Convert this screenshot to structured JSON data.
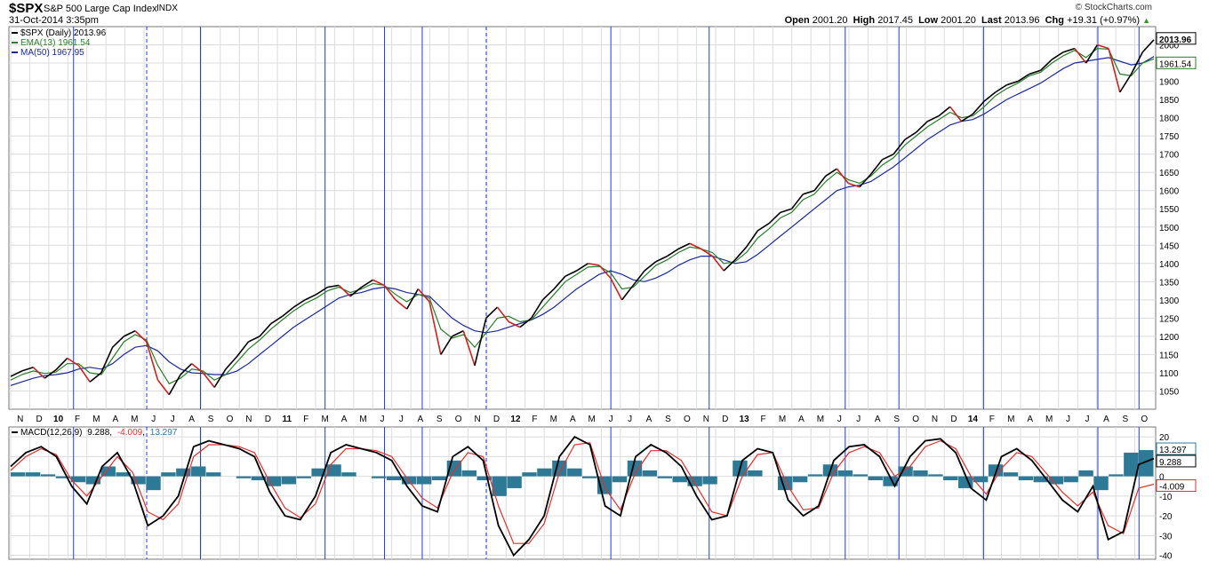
{
  "header": {
    "symbol": "$SPX",
    "name": "S&P 500 Large Cap Index",
    "exchange": "INDX",
    "date": "31-Oct-2014 3:35pm",
    "brand": "© StockCharts.com",
    "open_label": "Open",
    "open": "2001.20",
    "high_label": "High",
    "high": "2017.45",
    "low_label": "Low",
    "low": "2001.20",
    "last_label": "Last",
    "last": "2013.96",
    "chg_label": "Chg",
    "chg": "+19.31 (+0.97%)"
  },
  "legend": {
    "price": "$SPX (Daily) 2013.96",
    "ema": "EMA(13) 1961.54",
    "ma": "MA(50) 1967.95"
  },
  "macd_label": {
    "name": "MACD(12,26,9)",
    "macd": "9.288",
    "signal": "-4.009",
    "hist": "13.297"
  },
  "colors": {
    "price": "#000000",
    "down": "#cc2222",
    "ema": "#2a7d2a",
    "ma": "#1a2a9a",
    "vline": "#1f3fd6",
    "grid": "#dcdcdc",
    "hist": "#2e7a96",
    "signal": "#e03030"
  },
  "chart_data": [
    {
      "type": "line",
      "title": "$SPX (Daily)",
      "ylim": [
        1000,
        2050
      ],
      "yticks": [
        "1050",
        "1100",
        "1150",
        "1200",
        "1250",
        "1300",
        "1350",
        "1400",
        "1450",
        "1500",
        "1550",
        "1600",
        "1650",
        "1700",
        "1750",
        "1800",
        "1850",
        "1900",
        "1950",
        "2000"
      ],
      "x_month_labels": [
        "N",
        "D",
        "10",
        "F",
        "M",
        "A",
        "M",
        "J",
        "J",
        "A",
        "S",
        "O",
        "N",
        "D",
        "11",
        "F",
        "M",
        "A",
        "M",
        "J",
        "J",
        "A",
        "S",
        "O",
        "N",
        "D",
        "12",
        "F",
        "M",
        "A",
        "M",
        "J",
        "J",
        "A",
        "S",
        "O",
        "N",
        "D",
        "13",
        "F",
        "M",
        "A",
        "M",
        "J",
        "J",
        "A",
        "S",
        "O",
        "N",
        "D",
        "14",
        "F",
        "M",
        "A",
        "M",
        "J",
        "J",
        "A",
        "S",
        "O"
      ],
      "x_start": "2009-11",
      "grid": true,
      "last_value_labels": [
        "2013.96",
        "1961.54"
      ],
      "series": [
        {
          "name": "$SPX (Daily)",
          "values": [
            1090,
            1105,
            1115,
            1085,
            1108,
            1140,
            1120,
            1075,
            1100,
            1170,
            1200,
            1215,
            1185,
            1080,
            1040,
            1095,
            1125,
            1100,
            1060,
            1110,
            1145,
            1185,
            1200,
            1235,
            1255,
            1280,
            1300,
            1315,
            1335,
            1340,
            1310,
            1335,
            1355,
            1340,
            1300,
            1275,
            1330,
            1295,
            1150,
            1200,
            1215,
            1120,
            1250,
            1280,
            1240,
            1225,
            1250,
            1300,
            1330,
            1365,
            1380,
            1400,
            1395,
            1360,
            1300,
            1340,
            1380,
            1405,
            1420,
            1440,
            1455,
            1440,
            1420,
            1380,
            1410,
            1445,
            1490,
            1510,
            1540,
            1550,
            1590,
            1600,
            1640,
            1660,
            1620,
            1610,
            1645,
            1685,
            1700,
            1740,
            1760,
            1790,
            1805,
            1830,
            1790,
            1810,
            1845,
            1870,
            1890,
            1900,
            1920,
            1930,
            1960,
            1980,
            1990,
            1950,
            2000,
            1990,
            1870,
            1920,
            1980,
            2014
          ]
        },
        {
          "name": "EMA(13)",
          "values": [
            1080,
            1095,
            1105,
            1098,
            1102,
            1125,
            1125,
            1100,
            1095,
            1140,
            1185,
            1205,
            1190,
            1120,
            1070,
            1085,
            1110,
            1105,
            1080,
            1095,
            1130,
            1165,
            1190,
            1220,
            1245,
            1270,
            1290,
            1305,
            1325,
            1335,
            1320,
            1330,
            1345,
            1340,
            1315,
            1295,
            1315,
            1305,
            1220,
            1195,
            1205,
            1170,
            1210,
            1250,
            1255,
            1240,
            1245,
            1280,
            1315,
            1350,
            1370,
            1390,
            1392,
            1375,
            1330,
            1335,
            1365,
            1395,
            1410,
            1430,
            1445,
            1440,
            1430,
            1400,
            1405,
            1430,
            1470,
            1495,
            1525,
            1540,
            1575,
            1590,
            1625,
            1650,
            1630,
            1620,
            1640,
            1670,
            1690,
            1725,
            1750,
            1775,
            1795,
            1815,
            1800,
            1805,
            1830,
            1860,
            1880,
            1895,
            1915,
            1925,
            1950,
            1970,
            1985,
            1965,
            1990,
            1988,
            1920,
            1915,
            1950,
            1961.54
          ]
        },
        {
          "name": "MA(50)",
          "values": [
            1065,
            1075,
            1085,
            1092,
            1095,
            1100,
            1110,
            1115,
            1110,
            1125,
            1150,
            1170,
            1175,
            1160,
            1130,
            1110,
            1100,
            1098,
            1095,
            1095,
            1105,
            1125,
            1150,
            1175,
            1200,
            1225,
            1245,
            1265,
            1285,
            1305,
            1315,
            1320,
            1330,
            1335,
            1330,
            1320,
            1315,
            1310,
            1280,
            1250,
            1230,
            1215,
            1210,
            1215,
            1225,
            1235,
            1245,
            1260,
            1280,
            1305,
            1330,
            1350,
            1370,
            1380,
            1370,
            1355,
            1350,
            1360,
            1375,
            1395,
            1410,
            1420,
            1420,
            1410,
            1400,
            1405,
            1425,
            1450,
            1475,
            1500,
            1525,
            1550,
            1575,
            1600,
            1610,
            1615,
            1625,
            1645,
            1665,
            1690,
            1715,
            1740,
            1760,
            1780,
            1790,
            1795,
            1810,
            1830,
            1850,
            1865,
            1880,
            1895,
            1915,
            1935,
            1950,
            1955,
            1960,
            1965,
            1955,
            1945,
            1950,
            1967.95
          ]
        }
      ]
    },
    {
      "type": "line",
      "title": "MACD(12,26,9)",
      "ylim": [
        -42,
        25
      ],
      "yticks": [
        "20",
        "10",
        "0",
        "-10",
        "-20",
        "-30",
        "-40"
      ],
      "last_value_labels": [
        "13.297",
        "9.288",
        "-4.009"
      ],
      "series": [
        {
          "name": "MACD",
          "values": [
            5,
            12,
            15,
            10,
            -5,
            -14,
            5,
            12,
            -2,
            -25,
            -20,
            -10,
            15,
            18,
            16,
            14,
            10,
            -8,
            -20,
            -22,
            -10,
            12,
            16,
            14,
            12,
            8,
            -5,
            -15,
            -18,
            10,
            15,
            8,
            -25,
            -40,
            -32,
            -20,
            10,
            20,
            16,
            -15,
            -20,
            10,
            16,
            12,
            5,
            -10,
            -22,
            -20,
            8,
            14,
            12,
            -12,
            -20,
            -15,
            8,
            15,
            16,
            10,
            -5,
            10,
            18,
            19,
            12,
            -6,
            -12,
            10,
            14,
            8,
            -2,
            -12,
            -18,
            -5,
            -32,
            -28,
            6,
            9
          ]
        },
        {
          "name": "Signal",
          "values": [
            3,
            10,
            14,
            11,
            -2,
            -10,
            0,
            10,
            2,
            -18,
            -22,
            -14,
            10,
            16,
            16,
            15,
            12,
            -3,
            -16,
            -21,
            -14,
            6,
            14,
            14,
            13,
            10,
            -1,
            -11,
            -16,
            2,
            12,
            10,
            -15,
            -34,
            -34,
            -24,
            2,
            16,
            17,
            -6,
            -17,
            2,
            13,
            13,
            8,
            -5,
            -18,
            -20,
            0,
            11,
            12,
            -5,
            -17,
            -16,
            2,
            12,
            15,
            12,
            0,
            5,
            15,
            18,
            14,
            0,
            -9,
            4,
            12,
            10,
            1,
            -8,
            -15,
            -8,
            -25,
            -29,
            -6,
            -4.009
          ]
        },
        {
          "name": "Histogram",
          "values": [
            2,
            2,
            1,
            -1,
            -3,
            -4,
            5,
            2,
            -4,
            -7,
            2,
            4,
            5,
            2,
            0,
            -1,
            -2,
            -5,
            -4,
            -1,
            4,
            6,
            2,
            0,
            -1,
            -2,
            -4,
            -4,
            -2,
            8,
            3,
            -2,
            -10,
            -6,
            2,
            4,
            8,
            4,
            -1,
            -9,
            -3,
            8,
            3,
            -1,
            -3,
            -5,
            -4,
            0,
            8,
            3,
            0,
            -7,
            -3,
            1,
            6,
            3,
            1,
            -2,
            -5,
            5,
            3,
            1,
            -2,
            -6,
            -3,
            6,
            2,
            -2,
            -3,
            -4,
            -3,
            3,
            -7,
            1,
            12,
            13.297
          ]
        }
      ]
    }
  ]
}
